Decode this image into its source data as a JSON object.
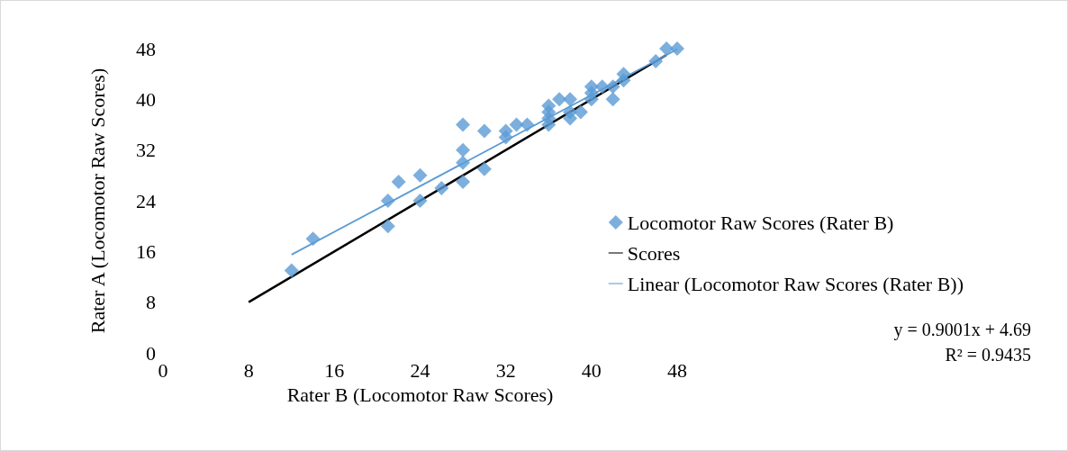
{
  "chart_data": {
    "type": "scatter",
    "xlabel": "Rater B (Locomotor Raw Scores)",
    "ylabel": "Rater A (Locomotor Raw Scores)",
    "xlim": [
      0,
      48
    ],
    "xticks": [
      0,
      8,
      16,
      24,
      32,
      40,
      48
    ],
    "ylim": [
      0,
      48
    ],
    "yticks": [
      0,
      8,
      16,
      24,
      32,
      40,
      48
    ],
    "grid": false,
    "legend": "right",
    "series": [
      {
        "name": "Locomotor Raw Scores (Rater B)",
        "marker": "diamond",
        "color": "#5b9bd5",
        "x": [
          12,
          14,
          21,
          21,
          22,
          24,
          24,
          26,
          28,
          28,
          28,
          28,
          30,
          30,
          32,
          32,
          33,
          34,
          36,
          36,
          36,
          36,
          37,
          38,
          38,
          38,
          39,
          40,
          40,
          40,
          41,
          42,
          42,
          43,
          43,
          46,
          47,
          48
        ],
        "values": [
          13,
          18,
          24,
          20,
          27,
          28,
          24,
          26,
          36,
          32,
          30,
          27,
          35,
          29,
          35,
          34,
          36,
          36,
          39,
          38,
          37,
          36,
          40,
          40,
          38,
          37,
          38,
          42,
          41,
          40,
          42,
          42,
          40,
          44,
          43,
          46,
          48,
          48
        ]
      },
      {
        "name": "Scores",
        "type": "line",
        "marker": "none",
        "color": "#000000",
        "line_style": "solid",
        "x": [
          8,
          47
        ],
        "values": [
          8,
          47
        ]
      },
      {
        "name": "Linear (Locomotor Raw Scores (Rater B))",
        "type": "line",
        "marker": "none",
        "color": "#5b9bd5",
        "line_style": "solid",
        "x": [
          12,
          48
        ],
        "values": [
          15.5,
          47.9
        ]
      }
    ],
    "annotations": [
      "y = 0.9001x + 4.69",
      "R² = 0.9435"
    ]
  }
}
